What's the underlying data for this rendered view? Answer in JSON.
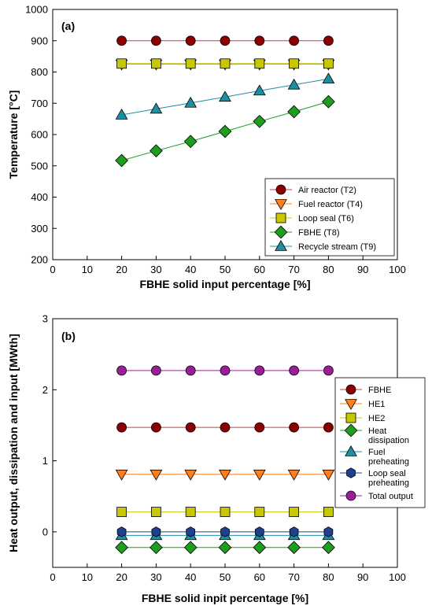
{
  "chart_data": [
    {
      "type": "line",
      "panel_label": "(a)",
      "xlabel": "FBHE solid input percentage [%]",
      "ylabel": "Temperature [°C]",
      "xlim": [
        0,
        100
      ],
      "ylim": [
        200,
        1000
      ],
      "xticks": [
        0,
        10,
        20,
        30,
        40,
        50,
        60,
        70,
        80,
        90,
        100
      ],
      "yticks": [
        200,
        300,
        400,
        500,
        600,
        700,
        800,
        900,
        1000
      ],
      "grid": false,
      "legend_position": "bottom-right",
      "x": [
        20,
        30,
        40,
        50,
        60,
        70,
        80
      ],
      "series": [
        {
          "name": "Air reactor (T2)",
          "values": [
            900,
            900,
            900,
            900,
            900,
            900,
            900
          ],
          "color": "#8B0000",
          "line_color": "#C04040",
          "marker": "circle"
        },
        {
          "name": "Fuel reactor (T4)",
          "values": [
            825,
            825,
            825,
            825,
            825,
            825,
            825
          ],
          "color": "#FF7F1E",
          "line_color": "#FF7F1E",
          "marker": "triangle-down"
        },
        {
          "name": "Loop seal (T6)",
          "values": [
            827,
            827,
            827,
            827,
            827,
            827,
            827
          ],
          "color": "#C8C800",
          "line_color": "#C8C800",
          "marker": "square"
        },
        {
          "name": "FBHE (T8)",
          "values": [
            517,
            548,
            578,
            610,
            642,
            673,
            705
          ],
          "color": "#1E9E1E",
          "line_color": "#1E9E1E",
          "marker": "diamond"
        },
        {
          "name": "Recycle stream (T9)",
          "values": [
            663,
            682,
            701,
            720,
            740,
            759,
            778
          ],
          "color": "#1E8FA0",
          "line_color": "#1E8FA0",
          "marker": "triangle-up"
        }
      ]
    },
    {
      "type": "line",
      "panel_label": "(b)",
      "xlabel": "FBHE solid inpit percentage [%]",
      "ylabel": "Heat output, dissipation and input [MWth]",
      "xlim": [
        0,
        100
      ],
      "ylim": [
        -0.5,
        3
      ],
      "xticks": [
        0,
        10,
        20,
        30,
        40,
        50,
        60,
        70,
        80,
        90,
        100
      ],
      "yticks": [
        0,
        1,
        2,
        3
      ],
      "grid": false,
      "legend_position": "right",
      "x": [
        20,
        30,
        40,
        50,
        60,
        70,
        80
      ],
      "series": [
        {
          "name": "FBHE",
          "label_lines": [
            "FBHE"
          ],
          "values": [
            1.47,
            1.47,
            1.47,
            1.47,
            1.47,
            1.47,
            1.47
          ],
          "color": "#8B0000",
          "line_color": "#C04040",
          "marker": "circle"
        },
        {
          "name": "HE1",
          "label_lines": [
            "HE1"
          ],
          "values": [
            0.81,
            0.81,
            0.81,
            0.81,
            0.81,
            0.81,
            0.81
          ],
          "color": "#FF7F1E",
          "line_color": "#FF7F1E",
          "marker": "triangle-down"
        },
        {
          "name": "HE2",
          "label_lines": [
            "HE2"
          ],
          "values": [
            0.28,
            0.28,
            0.28,
            0.28,
            0.28,
            0.28,
            0.28
          ],
          "color": "#C8C800",
          "line_color": "#C8C800",
          "marker": "square"
        },
        {
          "name": "Heat dissipation",
          "label_lines": [
            "Heat",
            "dissipation"
          ],
          "values": [
            -0.22,
            -0.22,
            -0.22,
            -0.22,
            -0.22,
            -0.22,
            -0.22
          ],
          "color": "#1E9E1E",
          "line_color": "#1E9E1E",
          "marker": "diamond"
        },
        {
          "name": "Fuel preheating",
          "label_lines": [
            "Fuel",
            "preheating"
          ],
          "values": [
            -0.05,
            -0.05,
            -0.05,
            -0.05,
            -0.05,
            -0.05,
            -0.05
          ],
          "color": "#1E8FA0",
          "line_color": "#1E8FA0",
          "marker": "triangle-up"
        },
        {
          "name": "Loop seal preheating",
          "label_lines": [
            "Loop seal",
            "preheating"
          ],
          "values": [
            0.0,
            0.0,
            0.0,
            0.0,
            0.0,
            0.0,
            0.0
          ],
          "color": "#1F3F8F",
          "line_color": "#1F3F8F",
          "marker": "hexagon"
        },
        {
          "name": "Total output",
          "label_lines": [
            "Total output"
          ],
          "values": [
            2.27,
            2.27,
            2.27,
            2.27,
            2.27,
            2.27,
            2.27
          ],
          "color": "#9A1E9A",
          "line_color": "#9A1E9A",
          "marker": "circle"
        }
      ]
    }
  ]
}
